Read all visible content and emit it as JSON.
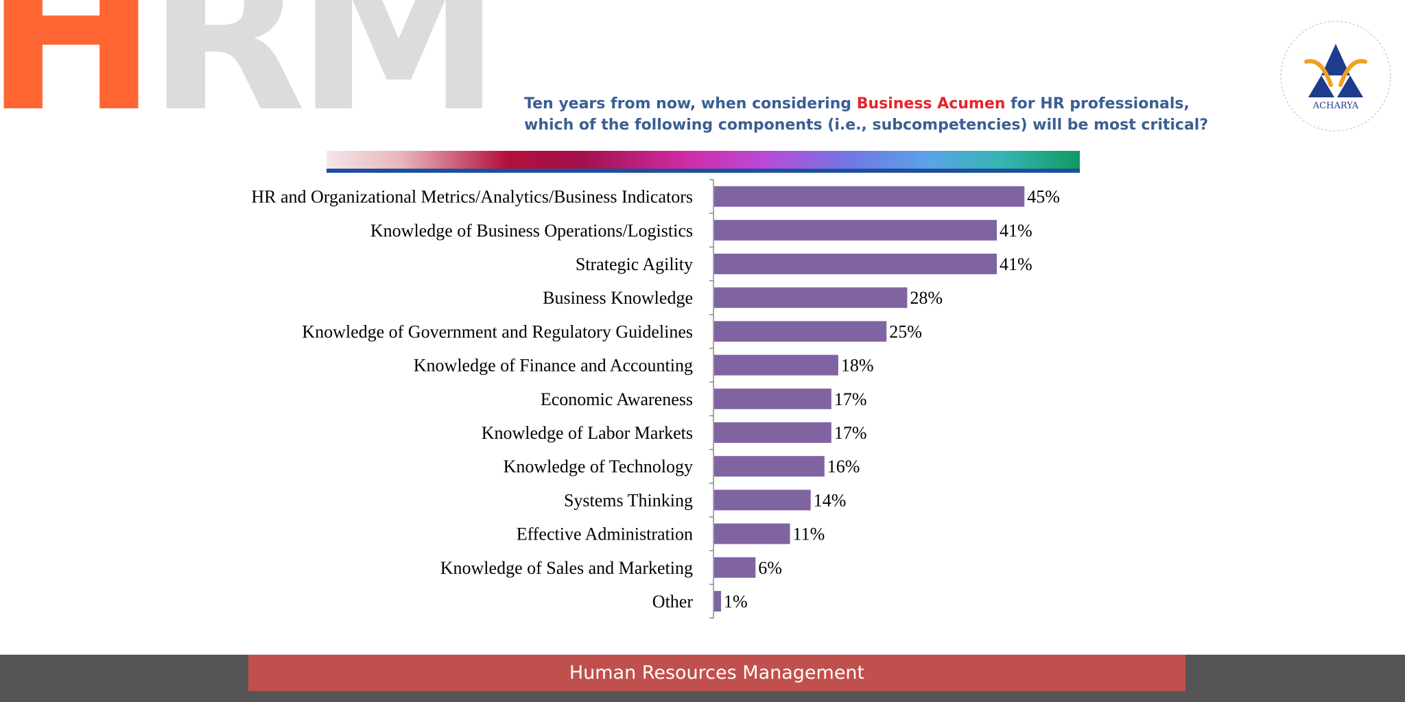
{
  "header": {
    "logo_h": "H",
    "logo_rm": "RM",
    "title_line1_pre": "Ten years from now, when considering ",
    "title_highlight": "Business Acumen",
    "title_line1_post": " for HR professionals,",
    "title_line2": "which of the following components (i.e., subcompetencies) will be most critical?",
    "institution_logo_text": "ACHARYA"
  },
  "colors": {
    "bar": "#8064a2",
    "title": "#3a5f93",
    "highlight": "#e8232a",
    "footer_box": "#c0504d",
    "footer_band": "#555557"
  },
  "chart_data": {
    "type": "bar",
    "orientation": "horizontal",
    "categories": [
      "HR and Organizational Metrics/Analytics/Business Indicators",
      "Knowledge of Business Operations/Logistics",
      "Strategic Agility",
      "Business Knowledge",
      "Knowledge of Government and Regulatory Guidelines",
      "Knowledge of Finance and Accounting",
      "Economic Awareness",
      "Knowledge of Labor Markets",
      "Knowledge of Technology",
      "Systems Thinking",
      "Effective Administration",
      "Knowledge of Sales and Marketing",
      "Other"
    ],
    "values": [
      45,
      41,
      41,
      28,
      25,
      18,
      17,
      17,
      16,
      14,
      11,
      6,
      1
    ],
    "labels": [
      "45%",
      "41%",
      "41%",
      "28%",
      "25%",
      "18%",
      "17%",
      "17%",
      "16%",
      "14%",
      "11%",
      "6%",
      "1%"
    ],
    "xlim": [
      0,
      50
    ],
    "grid": false,
    "legend": "none"
  },
  "footer": {
    "text": "Human Resources Management"
  }
}
